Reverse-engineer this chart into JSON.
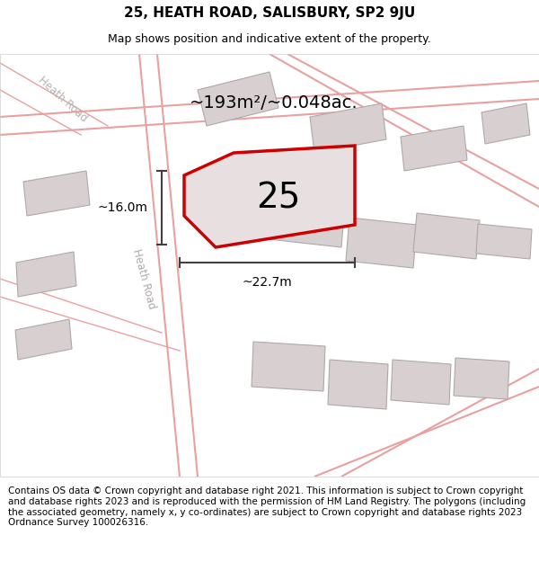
{
  "title": "25, HEATH ROAD, SALISBURY, SP2 9JU",
  "subtitle": "Map shows position and indicative extent of the property.",
  "footer": "Contains OS data © Crown copyright and database right 2021. This information is subject to Crown copyright and database rights 2023 and is reproduced with the permission of HM Land Registry. The polygons (including the associated geometry, namely x, y co-ordinates) are subject to Crown copyright and database rights 2023 Ordnance Survey 100026316.",
  "area_text": "~193m²/~0.048ac.",
  "number_label": "25",
  "dim_width": "~22.7m",
  "dim_height": "~16.0m",
  "road_label": "Heath Road",
  "road_label2": "Heath Road",
  "bg_color": "#f5f0f0",
  "map_bg": "#f5f0f0",
  "plot_outline_color": "#cc0000",
  "plot_fill_color": "#e8e0e0",
  "road_line_color": "#e8a0a0",
  "building_color": "#d8d0d0",
  "building_edge_color": "#b0a8a8",
  "dim_line_color": "#404040",
  "road_label_color": "#b0a8a8",
  "title_fontsize": 11,
  "subtitle_fontsize": 9,
  "footer_fontsize": 7.5,
  "area_fontsize": 14,
  "number_fontsize": 28,
  "dim_fontsize": 10
}
